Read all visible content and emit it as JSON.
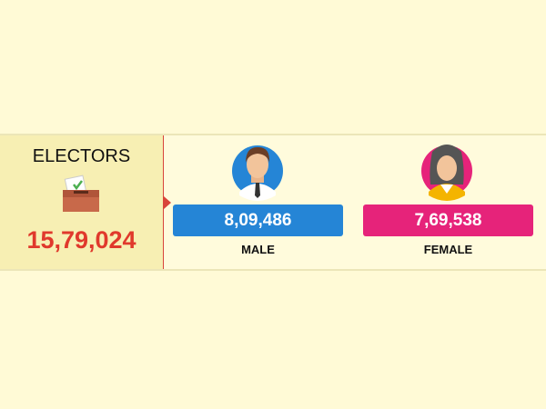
{
  "header": {
    "title": "ELECTORS",
    "total": "15,79,024"
  },
  "groups": [
    {
      "value": "8,09,486",
      "label": "MALE"
    },
    {
      "value": "7,69,538",
      "label": "FEMALE"
    }
  ]
}
